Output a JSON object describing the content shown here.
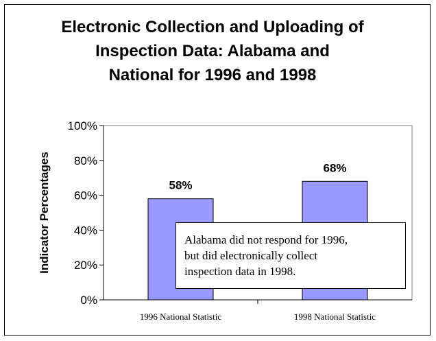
{
  "chart_data": {
    "type": "bar",
    "title_lines": [
      "Electronic Collection and Uploading of",
      "Inspection Data: Alabama and",
      "National for 1996 and 1998"
    ],
    "categories": [
      "1996 National Statistic",
      "1998 National Statistic"
    ],
    "values": [
      58,
      68
    ],
    "data_labels": [
      "58%",
      "68%"
    ],
    "xlabel": "",
    "ylabel": "Indicator Percentages",
    "ylim": [
      0,
      100
    ],
    "yticks": [
      0,
      20,
      40,
      60,
      80,
      100
    ],
    "ytick_labels": [
      "0%",
      "20%",
      "40%",
      "60%",
      "80%",
      "100%"
    ],
    "grid": false,
    "legend": "none",
    "bar_color": "#9999ff",
    "annotation_lines": [
      "Alabama did not respond for 1996,",
      "but did electronically collect",
      "inspection data in 1998."
    ]
  }
}
